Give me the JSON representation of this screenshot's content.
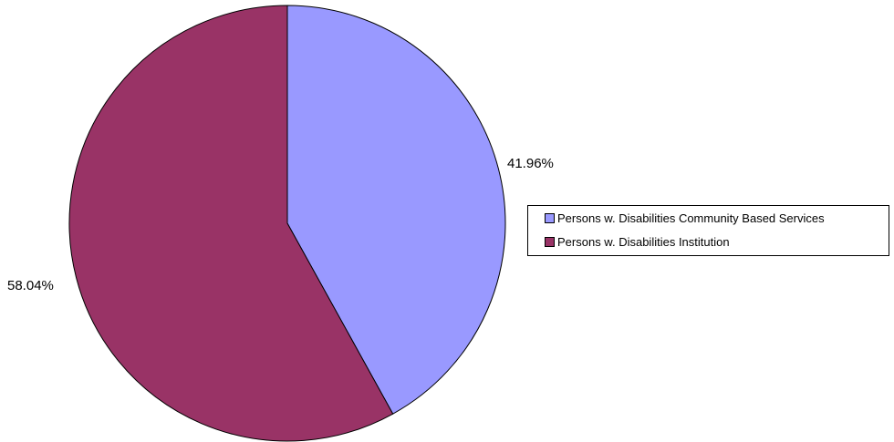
{
  "chart_data": {
    "type": "pie",
    "slices": [
      {
        "label": "Persons w. Disabilities Community Based Services",
        "value": 41.96,
        "display": "41.96%",
        "color": "#9999ff"
      },
      {
        "label": "Persons w. Disabilities Institution",
        "value": 58.04,
        "display": "58.04%",
        "color": "#993366"
      }
    ],
    "start_angle": "12 o'clock",
    "direction": "clockwise",
    "legend_position": "right",
    "border_color": "#000000"
  }
}
